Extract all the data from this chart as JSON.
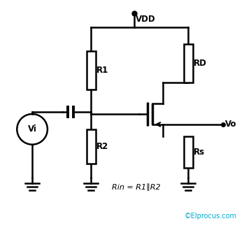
{
  "bg_color": "#ffffff",
  "line_color": "#000000",
  "text_color": "#000000",
  "cyan_color": "#00AACC",
  "label_R1": "R1",
  "label_R2": "R2",
  "label_RD": "RD",
  "label_Rs": "Rs",
  "label_Vi": "Vi",
  "label_Vo": "Vo",
  "label_VDD": "VDD",
  "label_Rin": "Rin = R1∥R2",
  "label_copy": "©Elprocus.com"
}
